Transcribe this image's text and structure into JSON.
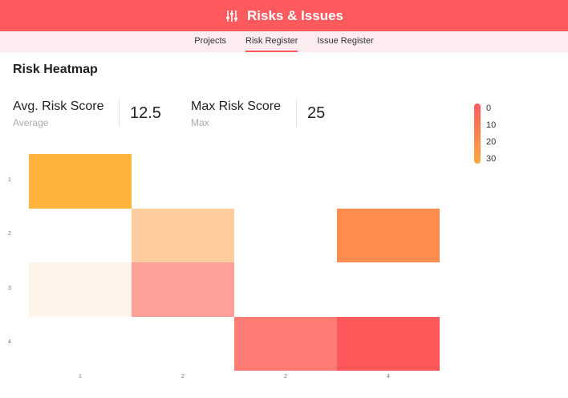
{
  "header": {
    "title": "Risks & Issues",
    "icon": "sliders-icon"
  },
  "tabs": [
    {
      "label": "Projects",
      "active": false
    },
    {
      "label": "Risk Register",
      "active": true
    },
    {
      "label": "Issue Register",
      "active": false
    }
  ],
  "section_title": "Risk Heatmap",
  "stats": [
    {
      "label": "Avg. Risk Score",
      "sub": "Average",
      "value": "12.5"
    },
    {
      "label": "Max Risk Score",
      "sub": "Max",
      "value": "25"
    }
  ],
  "legend": {
    "ticks": [
      "0",
      "10",
      "20",
      "30"
    ],
    "colors": [
      "#fe5a5d",
      "#fea93f"
    ]
  },
  "chart_data": {
    "type": "heatmap",
    "x_labels": [
      "1",
      "2",
      "2",
      "4"
    ],
    "y_labels": [
      "1",
      "2",
      "3",
      "4"
    ],
    "cells": [
      {
        "row": 0,
        "col": 0,
        "color": "#feb43c"
      },
      {
        "row": 1,
        "col": 1,
        "color": "#fecc9f"
      },
      {
        "row": 1,
        "col": 3,
        "color": "#fe8c4e"
      },
      {
        "row": 2,
        "col": 0,
        "color": "#fef4ea"
      },
      {
        "row": 2,
        "col": 1,
        "color": "#fea09a"
      },
      {
        "row": 3,
        "col": 2,
        "color": "#fe7a74"
      },
      {
        "row": 3,
        "col": 3,
        "color": "#fe585b"
      }
    ]
  }
}
